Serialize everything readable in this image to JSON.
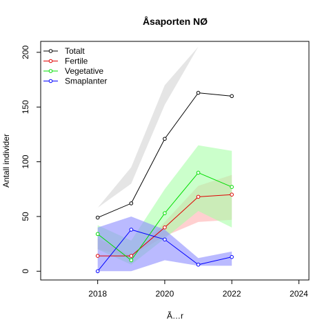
{
  "chart_data": {
    "type": "line",
    "title": "Åsaporten NØ",
    "xlabel": "Ã…r",
    "ylabel": "Antall individer",
    "xlim": [
      2016.3,
      2024.3
    ],
    "ylim": [
      -8,
      210
    ],
    "x_ticks": [
      2018,
      2020,
      2022,
      2024
    ],
    "y_ticks": [
      0,
      50,
      100,
      150,
      200
    ],
    "legend_position": "top-left",
    "grid": false,
    "x": [
      2018,
      2019,
      2020,
      2021,
      2022
    ],
    "series": [
      {
        "name": "Totalt",
        "color": "#000000",
        "band_color": "#d3d3d3",
        "values": [
          49,
          62,
          121,
          163,
          160
        ],
        "band_lower": [
          58,
          95,
          170,
          205,
          201
        ],
        "band_upper": [
          58,
          80,
          152,
          205,
          201
        ]
      },
      {
        "name": "Fertile",
        "color": "#df0000",
        "band_color": "#ffb0b0",
        "values": [
          14,
          14,
          40,
          68,
          70
        ],
        "band_lower": [
          20,
          13,
          45,
          78,
          88
        ],
        "band_upper": [
          30,
          14,
          32,
          45,
          47
        ]
      },
      {
        "name": "Vegetative",
        "color": "#00dd00",
        "band_color": "#a8ffa8",
        "values": [
          34,
          10,
          53,
          90,
          77
        ],
        "band_lower": [
          20,
          6,
          30,
          55,
          40
        ],
        "band_upper": [
          42,
          28,
          75,
          115,
          110
        ]
      },
      {
        "name": "Smaplanter",
        "color": "#0000ff",
        "band_color": "#8c8cff",
        "values": [
          0,
          38,
          29,
          6,
          13
        ],
        "band_lower": [
          0,
          0,
          10,
          5,
          5
        ],
        "band_upper": [
          40,
          50,
          38,
          12,
          18
        ]
      }
    ]
  }
}
